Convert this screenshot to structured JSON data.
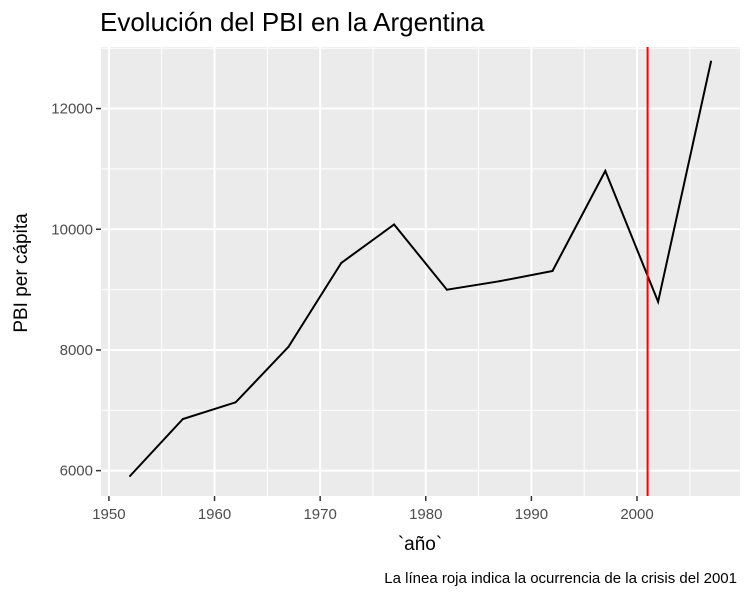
{
  "chart_data": {
    "type": "line",
    "title": "Evolución del PBI en la Argentina",
    "xlabel": "`año`",
    "ylabel": "PBI per cápita",
    "caption": "La línea roja indica la ocurrencia de la crisis del 2001",
    "x_ticks": [
      1950,
      1960,
      1970,
      1980,
      1990,
      2000
    ],
    "y_ticks": [
      6000,
      8000,
      10000,
      12000
    ],
    "xlim": [
      1949.25,
      2009.75
    ],
    "ylim": [
      5580,
      13020
    ],
    "grid": true,
    "panel_background": "#ebebeb",
    "line_color": "#000000",
    "series": [
      {
        "x": [
          1952,
          1957,
          1962,
          1967,
          1972,
          1977,
          1982,
          1987,
          1992,
          1997,
          2002,
          2007
        ],
        "values": [
          5911,
          6856,
          7133,
          8053,
          9443,
          10079,
          8998,
          9140,
          9308,
          10967,
          8798,
          12779
        ]
      }
    ],
    "vline": {
      "x": 2001,
      "color": "#ff0000"
    }
  }
}
